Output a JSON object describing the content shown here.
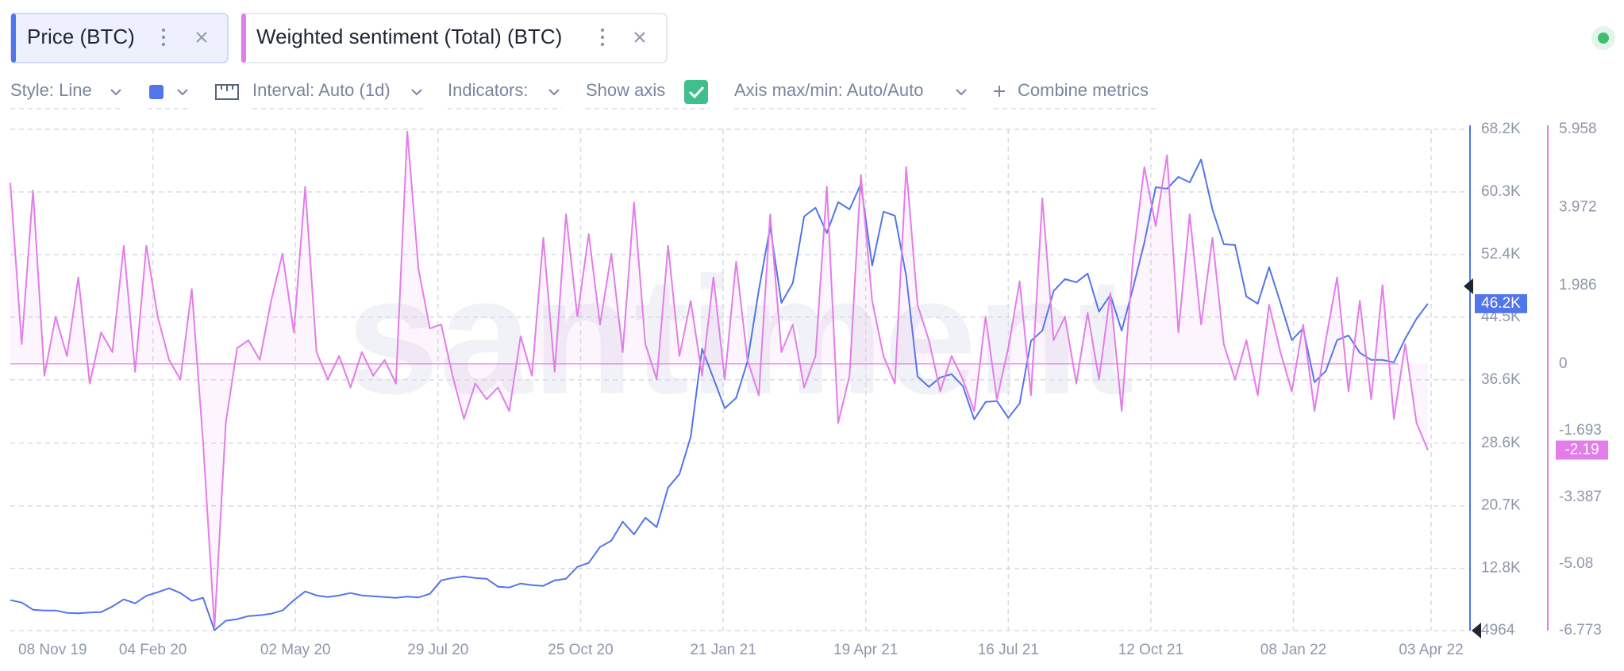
{
  "toolbar": {
    "style": "Style: Line",
    "interval": "Interval: Auto (1d)",
    "indicators": "Indicators:",
    "show_axis": "Show axis",
    "axis_range": "Axis max/min: Auto/Auto",
    "combine": "Combine metrics"
  },
  "chart_data": {
    "type": "line",
    "watermark": "santiment",
    "grid": true,
    "x": [
      "2019-11-08",
      "2019-11-15",
      "2019-11-22",
      "2019-11-29",
      "2019-12-06",
      "2019-12-13",
      "2019-12-20",
      "2019-12-27",
      "2020-01-03",
      "2020-01-10",
      "2020-01-17",
      "2020-01-24",
      "2020-01-31",
      "2020-02-07",
      "2020-02-14",
      "2020-02-21",
      "2020-02-28",
      "2020-03-06",
      "2020-03-13",
      "2020-03-20",
      "2020-03-27",
      "2020-04-03",
      "2020-04-10",
      "2020-04-17",
      "2020-04-24",
      "2020-05-01",
      "2020-05-08",
      "2020-05-15",
      "2020-05-22",
      "2020-05-29",
      "2020-06-05",
      "2020-06-12",
      "2020-06-19",
      "2020-06-26",
      "2020-07-03",
      "2020-07-10",
      "2020-07-17",
      "2020-07-24",
      "2020-07-31",
      "2020-08-07",
      "2020-08-14",
      "2020-08-21",
      "2020-08-28",
      "2020-09-04",
      "2020-09-11",
      "2020-09-18",
      "2020-09-25",
      "2020-10-02",
      "2020-10-09",
      "2020-10-16",
      "2020-10-23",
      "2020-10-30",
      "2020-11-06",
      "2020-11-13",
      "2020-11-20",
      "2020-11-27",
      "2020-12-04",
      "2020-12-11",
      "2020-12-18",
      "2020-12-25",
      "2021-01-01",
      "2021-01-08",
      "2021-01-15",
      "2021-01-22",
      "2021-01-29",
      "2021-02-05",
      "2021-02-12",
      "2021-02-19",
      "2021-02-26",
      "2021-03-05",
      "2021-03-12",
      "2021-03-19",
      "2021-03-26",
      "2021-04-02",
      "2021-04-09",
      "2021-04-16",
      "2021-04-23",
      "2021-04-30",
      "2021-05-07",
      "2021-05-14",
      "2021-05-21",
      "2021-05-28",
      "2021-06-04",
      "2021-06-11",
      "2021-06-18",
      "2021-06-25",
      "2021-07-02",
      "2021-07-09",
      "2021-07-16",
      "2021-07-23",
      "2021-07-30",
      "2021-08-06",
      "2021-08-13",
      "2021-08-20",
      "2021-08-27",
      "2021-09-03",
      "2021-09-10",
      "2021-09-17",
      "2021-09-24",
      "2021-10-01",
      "2021-10-08",
      "2021-10-15",
      "2021-10-22",
      "2021-10-29",
      "2021-11-05",
      "2021-11-12",
      "2021-11-19",
      "2021-11-26",
      "2021-12-03",
      "2021-12-10",
      "2021-12-17",
      "2021-12-24",
      "2021-12-31",
      "2022-01-07",
      "2022-01-14",
      "2022-01-21",
      "2022-01-28",
      "2022-02-04",
      "2022-02-11",
      "2022-02-18",
      "2022-02-25",
      "2022-03-04",
      "2022-03-11",
      "2022-03-18",
      "2022-03-25",
      "2022-04-01"
    ],
    "xlim": [
      "2019-11-08",
      "2022-04-27"
    ],
    "xticks": [
      {
        "value": "2019-11-08",
        "label": "08 Nov 19"
      },
      {
        "value": "2020-02-04",
        "label": "04 Feb 20"
      },
      {
        "value": "2020-05-02",
        "label": "02 May 20"
      },
      {
        "value": "2020-07-29",
        "label": "29 Jul 20"
      },
      {
        "value": "2020-10-25",
        "label": "25 Oct 20"
      },
      {
        "value": "2021-01-21",
        "label": "21 Jan 21"
      },
      {
        "value": "2021-04-19",
        "label": "19 Apr 21"
      },
      {
        "value": "2021-07-16",
        "label": "16 Jul 21"
      },
      {
        "value": "2021-10-12",
        "label": "12 Oct 21"
      },
      {
        "value": "2022-01-08",
        "label": "08 Jan 22"
      },
      {
        "value": "2022-04-03",
        "label": "03 Apr 22"
      }
    ],
    "ylim": [
      4964,
      68200
    ],
    "yticks": [
      4964,
      {
        "value": 12800,
        "label": "12.8K"
      },
      {
        "value": 20700,
        "label": "20.7K"
      },
      {
        "value": 28600,
        "label": "28.6K"
      },
      {
        "value": 36600,
        "label": "36.6K"
      },
      {
        "value": 44500,
        "label": "44.5K"
      },
      {
        "value": 52400,
        "label": "52.4K"
      },
      {
        "value": 60300,
        "label": "60.3K"
      },
      {
        "value": 68200,
        "label": "68.2K"
      }
    ],
    "y2lim": [
      -6.773,
      5.958
    ],
    "y2ticks": [
      -6.773,
      -5.08,
      -3.387,
      -1.693,
      0,
      1.986,
      3.972,
      5.958
    ],
    "series": [
      {
        "name": "Price (BTC)",
        "color": "#5275ea",
        "axis": "y",
        "current_label": "46.2K",
        "values": [
          8800,
          8500,
          7600,
          7500,
          7500,
          7200,
          7150,
          7250,
          7300,
          8000,
          8900,
          8400,
          9350,
          9800,
          10300,
          9700,
          8700,
          9100,
          5000,
          6200,
          6400,
          6800,
          6900,
          7100,
          7500,
          8800,
          9900,
          9400,
          9200,
          9400,
          9700,
          9400,
          9300,
          9200,
          9100,
          9250,
          9150,
          9600,
          11300,
          11600,
          11800,
          11600,
          11500,
          10500,
          10400,
          10900,
          10700,
          10600,
          11300,
          11500,
          13000,
          13500,
          15500,
          16300,
          18700,
          17100,
          19200,
          18000,
          23000,
          24700,
          29400,
          40500,
          36800,
          33000,
          34300,
          38900,
          47900,
          55900,
          46300,
          48800,
          57200,
          58300,
          55100,
          59000,
          58100,
          61300,
          51000,
          57800,
          57300,
          49700,
          37000,
          35700,
          36900,
          37300,
          35800,
          31600,
          33800,
          33900,
          31800,
          33600,
          41500,
          42800,
          47800,
          49300,
          48900,
          50000,
          45200,
          47300,
          42800,
          48200,
          53900,
          60900,
          60700,
          62200,
          61500,
          64400,
          58100,
          53700,
          53600,
          47100,
          46200,
          50800,
          46300,
          41600,
          43100,
          36300,
          37700,
          41600,
          42200,
          40000,
          39100,
          39100,
          38800,
          41800,
          44300,
          46200
        ]
      },
      {
        "name": "Weighted sentiment (Total) (BTC)",
        "color": "#e27de9",
        "axis": "y2",
        "current_label": "-2.19",
        "values": [
          4.6,
          0.5,
          4.4,
          -0.3,
          1.2,
          0.2,
          2.2,
          -0.5,
          0.8,
          0.3,
          3.0,
          -0.2,
          3.0,
          1.2,
          0.1,
          -0.4,
          1.9,
          -2.0,
          -6.7,
          -1.5,
          0.4,
          0.6,
          0.1,
          1.6,
          2.8,
          0.8,
          4.5,
          0.3,
          -0.4,
          0.2,
          -0.6,
          0.3,
          -0.3,
          0.1,
          -0.5,
          5.9,
          2.4,
          0.9,
          1.0,
          -0.3,
          -1.4,
          -0.5,
          -0.9,
          -0.6,
          -1.2,
          0.7,
          -0.3,
          3.2,
          -0.2,
          3.8,
          1.2,
          3.3,
          1.0,
          2.8,
          0.3,
          4.1,
          0.5,
          -0.4,
          3.0,
          0.2,
          1.6,
          -0.3,
          2.2,
          -0.4,
          2.6,
          0.1,
          -0.8,
          3.8,
          0.3,
          1.0,
          -0.6,
          0.2,
          4.5,
          -1.5,
          -0.3,
          4.8,
          1.6,
          0.2,
          -0.5,
          5.0,
          1.5,
          0.6,
          -0.7,
          0.2,
          -0.4,
          -1.2,
          1.2,
          -0.9,
          0.4,
          2.1,
          -0.8,
          4.2,
          0.6,
          1.2,
          -0.5,
          1.3,
          -0.4,
          1.8,
          -1.2,
          2.7,
          5.0,
          3.5,
          5.3,
          0.8,
          3.8,
          1.0,
          3.2,
          0.5,
          -0.4,
          0.6,
          -0.8,
          1.5,
          0.3,
          -0.7,
          1.0,
          -1.2,
          0.6,
          2.2,
          -0.7,
          1.6,
          -0.9,
          2.0,
          -1.4,
          0.5,
          -1.5,
          -2.19
        ]
      }
    ]
  }
}
